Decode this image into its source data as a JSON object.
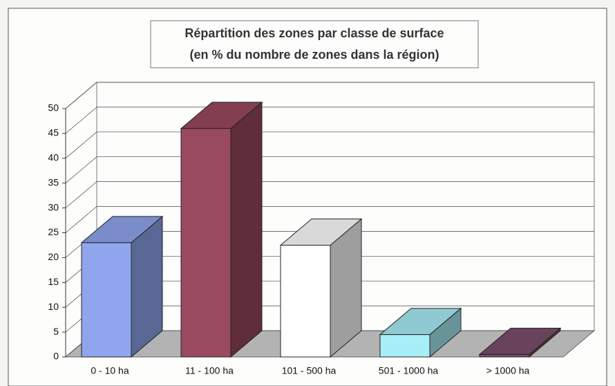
{
  "chart_data": {
    "type": "bar3d",
    "title": [
      "Répartition des zones par classe de surface",
      "(en % du nombre de zones dans la région)"
    ],
    "categories": [
      "0 - 10 ha",
      "11 - 100 ha",
      "101 - 500 ha",
      "501 - 1000 ha",
      "> 1000 ha"
    ],
    "values": [
      23,
      46,
      22.5,
      4.5,
      0.5
    ],
    "colors": [
      "#8fa6ee",
      "#9a4a5e",
      "#ffffff",
      "#a8eef7",
      "#7c4f6c"
    ],
    "ylim": [
      0,
      50
    ],
    "yticks": [
      0,
      5,
      10,
      15,
      20,
      25,
      30,
      35,
      40,
      45,
      50
    ],
    "grid": true
  }
}
